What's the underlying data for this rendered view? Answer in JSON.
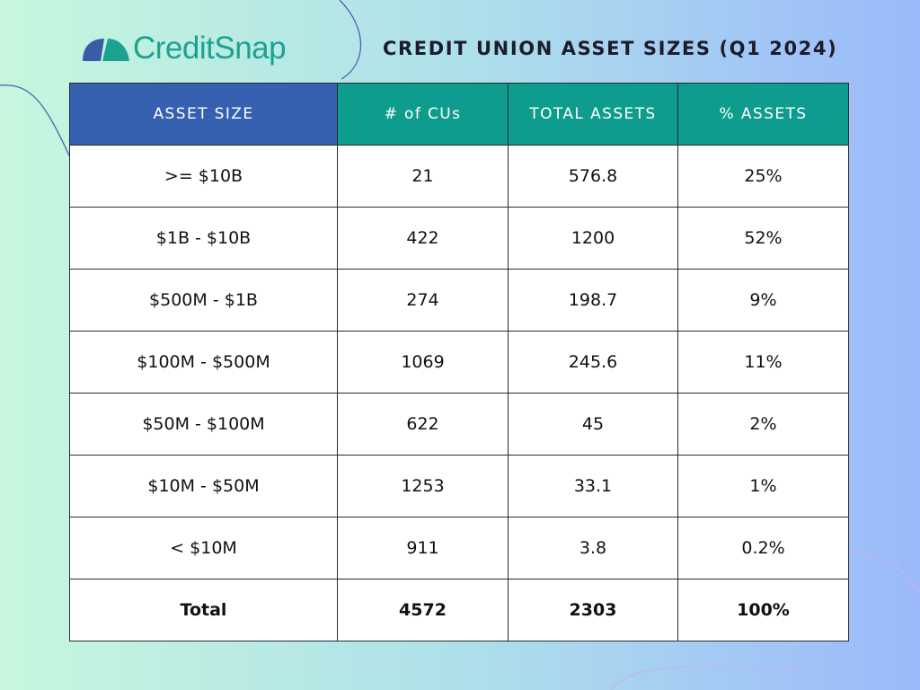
{
  "brand": {
    "name": "CreditSnap",
    "colors": {
      "navy": "#3a5ba8",
      "teal": "#1ea290",
      "header_first": "#3561b0",
      "header_rest": "#0e9c8e",
      "title_text": "#1c1c2c"
    }
  },
  "title": "CREDIT UNION ASSET SIZES (Q1 2024)",
  "chart_data": {
    "type": "table",
    "title": "CREDIT UNION ASSET SIZES (Q1 2024)",
    "columns": [
      "ASSET SIZE",
      "# of CUs",
      "TOTAL ASSETS",
      "% ASSETS"
    ],
    "rows": [
      [
        ">= $10B",
        "21",
        "576.8",
        "25%"
      ],
      [
        "$1B - $10B",
        "422",
        "1200",
        "52%"
      ],
      [
        "$500M - $1B",
        "274",
        "198.7",
        "9%"
      ],
      [
        "$100M - $500M",
        "1069",
        "245.6",
        "11%"
      ],
      [
        "$50M - $100M",
        "622",
        "45",
        "2%"
      ],
      [
        "$10M - $50M",
        "1253",
        "33.1",
        "1%"
      ],
      [
        "< $10M",
        "911",
        "3.8",
        "0.2%"
      ]
    ],
    "total_row": [
      "Total",
      "4572",
      "2303",
      "100%"
    ]
  }
}
